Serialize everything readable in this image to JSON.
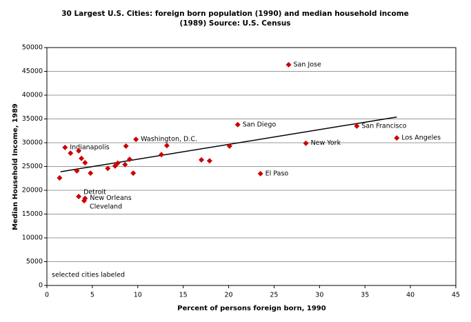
{
  "chart_data": {
    "type": "scatter",
    "title": [
      "30 Largest U.S. Cities:  foreign born population (1990) and median household income",
      "(1989)  Source:  U.S. Census"
    ],
    "x_label": "Percent of persons foreign born, 1990",
    "y_label": "Median Household Income, 1989",
    "annotation": "selected cities labeled",
    "series": [
      {
        "color": "#cc0000",
        "x": [
          1.4,
          2.0,
          2.6,
          3.3,
          3.5,
          3.8,
          3.5,
          4.2,
          4.2,
          4.1,
          4.8,
          6.7,
          7.5,
          7.8,
          8.6,
          8.7,
          9.1,
          9.5,
          9.8,
          12.6,
          13.2,
          17.0,
          17.9,
          20.1,
          21.0,
          23.5,
          26.6,
          28.5,
          34.1,
          38.5
        ],
        "values": [
          22600,
          29000,
          27800,
          24100,
          28300,
          26700,
          18700,
          25800,
          18300,
          17800,
          23600,
          24600,
          25100,
          25700,
          25400,
          29300,
          26500,
          23600,
          30700,
          27500,
          29400,
          26400,
          26200,
          29300,
          33800,
          23500,
          46400,
          29900,
          33500,
          31000
        ],
        "labels": [
          null,
          "Indianapolis",
          null,
          null,
          null,
          null,
          "Detroit",
          null,
          "New Orleans",
          "Cleveland",
          null,
          null,
          null,
          null,
          null,
          null,
          null,
          null,
          "Washington, D.C.",
          null,
          null,
          null,
          null,
          null,
          "San Diego",
          "El Paso",
          "San Jose",
          "New York",
          "San Francisco",
          "Los Angeles"
        ]
      }
    ],
    "trendline": {
      "color": "#000000",
      "x": [
        1.5,
        38.5
      ],
      "values": [
        23900,
        35400
      ]
    },
    "xlim": [
      0,
      45
    ],
    "xticks": [
      0,
      5,
      10,
      15,
      20,
      25,
      30,
      35,
      40,
      45
    ],
    "ylim": [
      0,
      50000
    ],
    "yticks": [
      0,
      5000,
      10000,
      15000,
      20000,
      25000,
      30000,
      35000,
      40000,
      45000,
      50000
    ],
    "grid": true
  }
}
